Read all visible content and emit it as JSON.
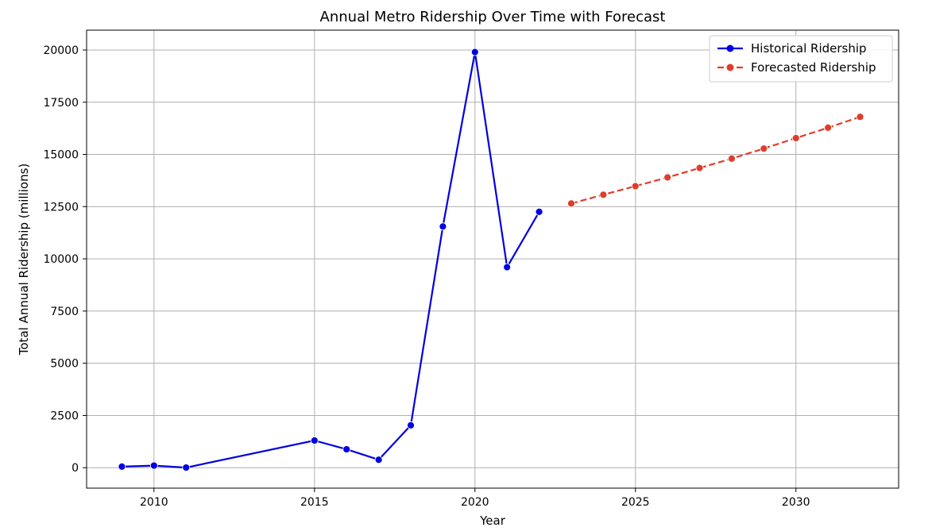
{
  "chart_data": {
    "type": "line",
    "title": "Annual Metro Ridership Over Time with Forecast",
    "xlabel": "Year",
    "ylabel": "Total Annual Ridership (millions)",
    "xlim": [
      2007.9,
      2033.2
    ],
    "ylim": [
      -980,
      20950
    ],
    "x_ticks": [
      2010,
      2015,
      2020,
      2025,
      2030
    ],
    "y_ticks": [
      0,
      2500,
      5000,
      7500,
      10000,
      12500,
      15000,
      17500,
      20000
    ],
    "x_tick_labels": [
      "2010",
      "2015",
      "2020",
      "2025",
      "2030"
    ],
    "y_tick_labels": [
      "0",
      "2500",
      "5000",
      "7500",
      "10000",
      "12500",
      "15000",
      "17500",
      "20000"
    ],
    "grid": true,
    "legend_position": "top-right",
    "series": [
      {
        "name": "Historical Ridership",
        "color": "#0000e0",
        "line_style": "solid",
        "marker": "circle",
        "x": [
          2009,
          2010,
          2011,
          2015,
          2016,
          2017,
          2018,
          2019,
          2020,
          2021,
          2022
        ],
        "y": [
          50,
          100,
          5,
          1300,
          880,
          380,
          2030,
          11550,
          19900,
          9600,
          12250
        ]
      },
      {
        "name": "Forecasted Ridership",
        "color": "#e03c2a",
        "line_style": "dashed",
        "marker": "circle",
        "x": [
          2023,
          2024,
          2025,
          2026,
          2027,
          2028,
          2029,
          2030,
          2031,
          2032
        ],
        "y": [
          12650,
          13070,
          13480,
          13900,
          14350,
          14800,
          15280,
          15780,
          16280,
          16800
        ]
      }
    ]
  }
}
